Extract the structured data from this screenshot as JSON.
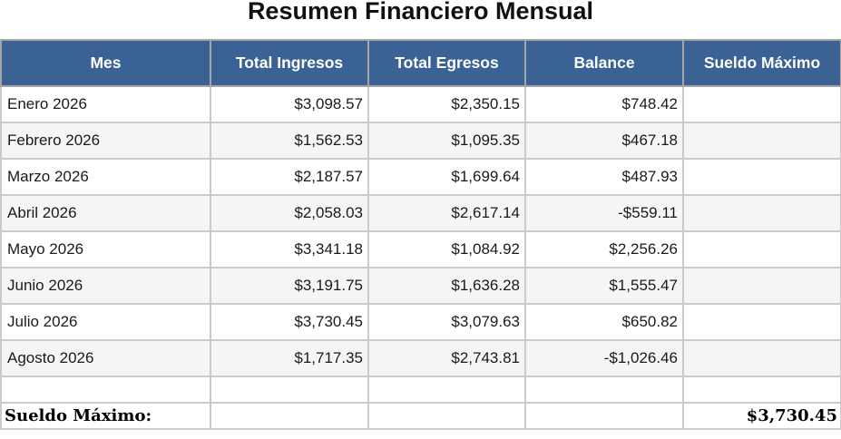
{
  "title": "Resumen Financiero Mensual",
  "table": {
    "columns": [
      "Mes",
      "Total Ingresos",
      "Total Egresos",
      "Balance",
      "Sueldo Máximo"
    ],
    "rows": [
      {
        "mes": "Enero 2026",
        "ingresos": "$3,098.57",
        "egresos": "$2,350.15",
        "balance": "$748.42",
        "sueldo": ""
      },
      {
        "mes": "Febrero 2026",
        "ingresos": "$1,562.53",
        "egresos": "$1,095.35",
        "balance": "$467.18",
        "sueldo": ""
      },
      {
        "mes": "Marzo 2026",
        "ingresos": "$2,187.57",
        "egresos": "$1,699.64",
        "balance": "$487.93",
        "sueldo": ""
      },
      {
        "mes": "Abril 2026",
        "ingresos": "$2,058.03",
        "egresos": "$2,617.14",
        "balance": "-$559.11",
        "sueldo": ""
      },
      {
        "mes": "Mayo 2026",
        "ingresos": "$3,341.18",
        "egresos": "$1,084.92",
        "balance": "$2,256.26",
        "sueldo": ""
      },
      {
        "mes": "Junio 2026",
        "ingresos": "$3,191.75",
        "egresos": "$1,636.28",
        "balance": "$1,555.47",
        "sueldo": ""
      },
      {
        "mes": "Julio 2026",
        "ingresos": "$3,730.45",
        "egresos": "$3,079.63",
        "balance": "$650.82",
        "sueldo": ""
      },
      {
        "mes": "Agosto 2026",
        "ingresos": "$1,717.35",
        "egresos": "$2,743.81",
        "balance": "-$1,026.46",
        "sueldo": ""
      }
    ],
    "footer": {
      "label": "Sueldo Máximo:",
      "value": "$3,730.45"
    }
  },
  "colors": {
    "header_bg": "#3A6295",
    "header_text": "#FFFFFF",
    "alt_row_bg": "#F5F5F5",
    "cell_border": "#CBCBCB",
    "header_border": "#A6A6A6",
    "title_text": "#111111",
    "negative_text": "#000000"
  }
}
